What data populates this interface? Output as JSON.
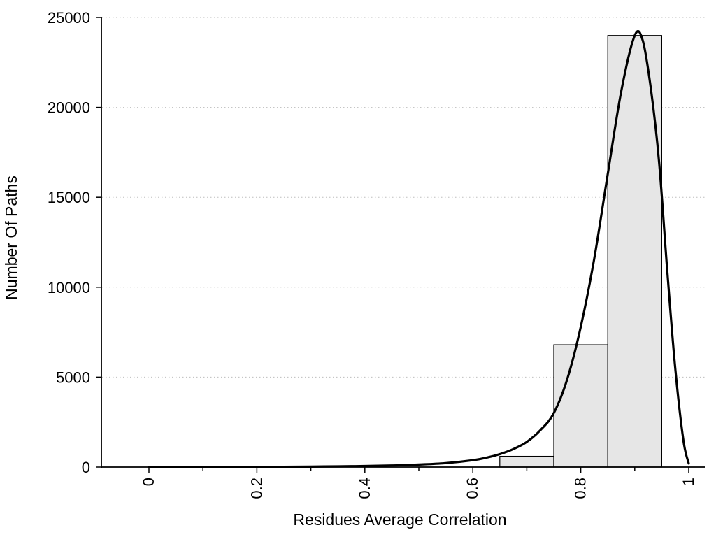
{
  "figure": {
    "background": "#ffffff"
  },
  "chart_data": {
    "type": "histogram",
    "title": "",
    "xlabel": "Residues Average Correlation",
    "ylabel": "Number Of Paths",
    "xlim": [
      0,
      1
    ],
    "ylim": [
      0,
      25000
    ],
    "xticks": {
      "major_values": [
        0,
        0.2,
        0.4,
        0.6,
        0.8,
        1
      ],
      "labels": [
        "0",
        "0.2",
        "0.4",
        "0.6",
        "0.8",
        "1"
      ],
      "minor_step": 0.1,
      "label_rotation_deg": -90
    },
    "yticks": {
      "values": [
        0,
        5000,
        10000,
        15000,
        20000,
        25000
      ],
      "labels": [
        "0",
        "5000",
        "10000",
        "15000",
        "20000",
        "25000"
      ]
    },
    "grid": {
      "horizontal": true,
      "vertical": false,
      "style": "dotted"
    },
    "legend": "none",
    "series": [
      {
        "name": "paths-histogram",
        "type": "bar",
        "bins": [
          {
            "x0": 0.65,
            "x1": 0.75,
            "count": 600
          },
          {
            "x0": 0.75,
            "x1": 0.85,
            "count": 6800
          },
          {
            "x0": 0.85,
            "x1": 0.95,
            "count": 24000
          }
        ]
      },
      {
        "name": "density-curve",
        "type": "line",
        "x": [
          0,
          0.05,
          0.1,
          0.15,
          0.2,
          0.25,
          0.3,
          0.35,
          0.4,
          0.45,
          0.5,
          0.55,
          0.6,
          0.625,
          0.65,
          0.675,
          0.7,
          0.725,
          0.75,
          0.775,
          0.8,
          0.825,
          0.85,
          0.875,
          0.9,
          0.915,
          0.93,
          0.945,
          0.96,
          0.975,
          0.99,
          1.0
        ],
        "y": [
          0,
          0,
          0,
          5,
          10,
          15,
          25,
          40,
          60,
          90,
          140,
          220,
          380,
          520,
          720,
          1000,
          1400,
          2050,
          3000,
          4900,
          7800,
          11600,
          16300,
          20900,
          24000,
          23700,
          21000,
          17000,
          11000,
          5500,
          1500,
          200
        ]
      }
    ],
    "colors": {
      "bar_fill": "#e6e6e6",
      "bar_stroke": "#000000",
      "line": "#000000",
      "grid": "#bdbdbd",
      "axis": "#000000",
      "text": "#000000",
      "background": "#ffffff"
    }
  }
}
